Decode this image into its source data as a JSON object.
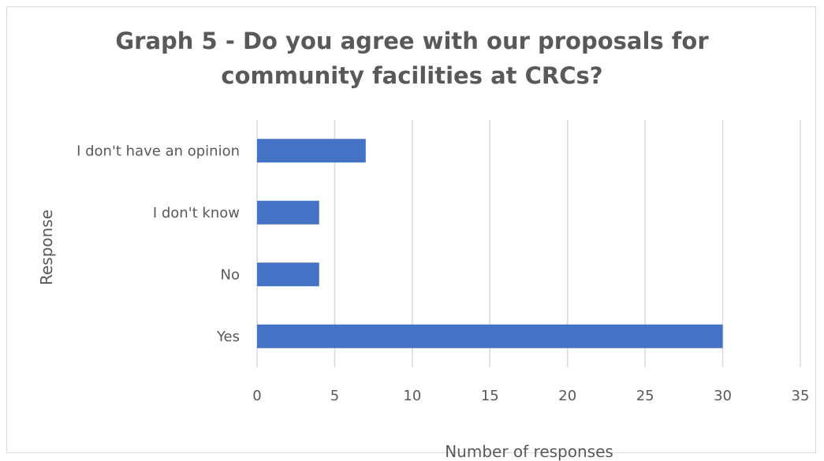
{
  "chart_data": {
    "type": "bar",
    "orientation": "horizontal",
    "title_lines": [
      "Graph 5 - Do you agree with our proposals for",
      "community facilities at CRCs?"
    ],
    "categories": [
      "I don't have an opinion",
      "I don't know",
      "No",
      "Yes"
    ],
    "values": [
      7,
      4,
      4,
      30
    ],
    "xlabel": "Number of responses",
    "ylabel": "Response",
    "xlim": [
      0,
      35
    ],
    "xticks": [
      "0",
      "5",
      "10",
      "15",
      "20",
      "25",
      "30",
      "35"
    ],
    "grid": true,
    "legend": "none",
    "bar_color": "#4472c4",
    "grid_color": "#d9d9d9"
  }
}
